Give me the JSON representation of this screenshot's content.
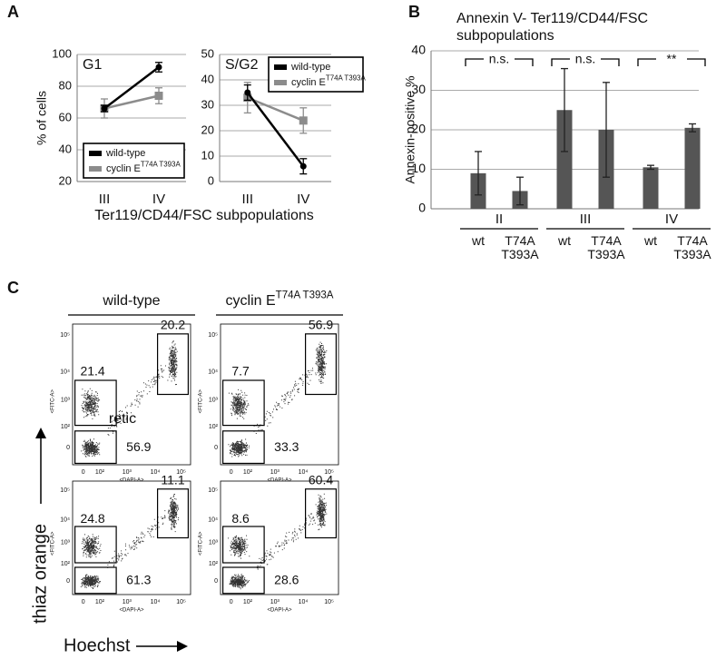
{
  "panel_labels": [
    "A",
    "B",
    "C"
  ],
  "chart_data": [
    {
      "type": "line",
      "title": "G1",
      "y_label": "% of cells",
      "x_label": "Ter119/CD44/FSC subpopulations",
      "categories": [
        "III",
        "IV"
      ],
      "ylim": [
        20,
        100
      ],
      "yticks": [
        20,
        40,
        60,
        80,
        100
      ],
      "grid": true,
      "legend": "lower right",
      "series": [
        {
          "name": "wild-type",
          "color": "#000000",
          "values": [
            66,
            92
          ],
          "errors": [
            2,
            3
          ]
        },
        {
          "name": "cyclin E",
          "name_superscript": "T74A T393A",
          "color": "#8c8c8c",
          "values": [
            66,
            74
          ],
          "errors": [
            6,
            5
          ]
        }
      ]
    },
    {
      "type": "line",
      "title": "S/G2",
      "categories": [
        "III",
        "IV"
      ],
      "ylim": [
        0,
        50
      ],
      "yticks": [
        0,
        10,
        20,
        30,
        40,
        50
      ],
      "grid": true,
      "legend": "upper right",
      "series": [
        {
          "name": "wild-type",
          "color": "#000000",
          "values": [
            35,
            6
          ],
          "errors": [
            3,
            3
          ]
        },
        {
          "name": "cyclin E",
          "name_superscript": "T74A T393A",
          "color": "#8c8c8c",
          "values": [
            33,
            24
          ],
          "errors": [
            6,
            5
          ]
        }
      ]
    },
    {
      "type": "bar",
      "title": "Annexin V- Ter119/CD44/FSC subpopulations",
      "y_label": "Annexin-positive %",
      "categories": [
        "wt",
        "T74A T393A",
        "wt",
        "T74A T393A",
        "wt",
        "T74A T393A"
      ],
      "groups": [
        "II",
        "III",
        "IV"
      ],
      "values": [
        9,
        4.5,
        25,
        20,
        10.5,
        20.5
      ],
      "errors": [
        5.5,
        3.5,
        10.5,
        12,
        0.5,
        1
      ],
      "color": "#555555",
      "ylim": [
        0,
        40
      ],
      "yticks": [
        0,
        10,
        20,
        30,
        40
      ],
      "grid": true,
      "annotations": [
        "n.s.",
        "n.s.",
        "**"
      ]
    }
  ],
  "flow_panel": {
    "columns": [
      {
        "name": "wild-type"
      },
      {
        "name": "cyclin E",
        "name_superscript": "T74A T393A"
      }
    ],
    "plots": [
      [
        20.2,
        21.4,
        56.9
      ],
      [
        56.9,
        7.7,
        33.3
      ],
      [
        11.1,
        24.8,
        61.3
      ],
      [
        60.4,
        8.6,
        28.6
      ]
    ],
    "annotation": "retic",
    "y_label": "thiaz orange",
    "x_label": "Hoechst",
    "y_channel": "<FITC-A>",
    "x_channel": "<DAPI-A>",
    "ticks": [
      "0",
      "10²",
      "10³",
      "10⁴",
      "10⁵"
    ]
  }
}
